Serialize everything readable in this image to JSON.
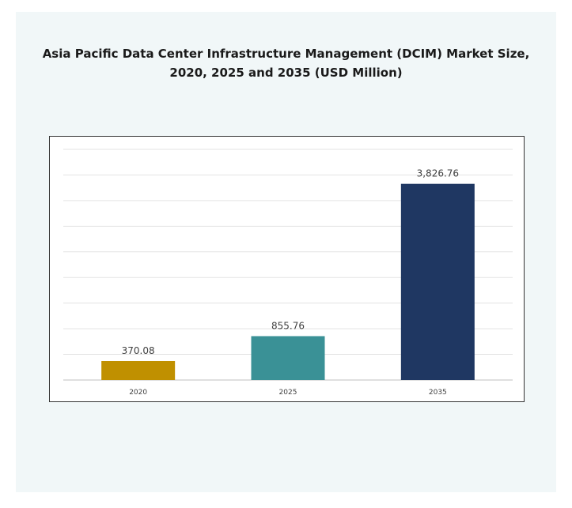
{
  "title_line1": "Asia Pacific Data Center Infrastructure Management (DCIM) Market Size,",
  "title_line2": "2020, 2025 and 2035 (USD Million)",
  "chart_data": {
    "type": "bar",
    "title": "Asia Pacific Data Center Infrastructure Management (DCIM) Market Size, 2020, 2025 and 2035 (USD Million)",
    "categories": [
      "2020",
      "2025",
      "2035"
    ],
    "values": [
      370.08,
      855.76,
      3826.76
    ],
    "value_labels": [
      "370.08",
      "855.76",
      "3,826.76"
    ],
    "colors": [
      "#c09000",
      "#3a9196",
      "#1f3762"
    ],
    "ylim": [
      0,
      4500
    ],
    "grid": true,
    "legend": "none"
  }
}
